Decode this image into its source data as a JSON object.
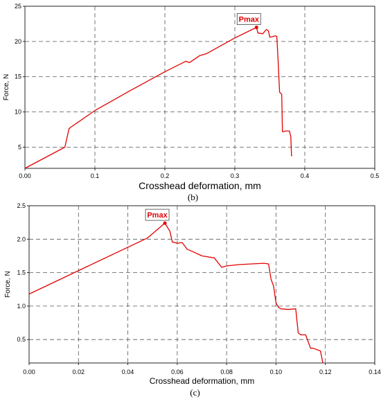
{
  "chart_data": [
    {
      "type": "line",
      "caption": "(b)",
      "xlabel": "Crosshead deformation, mm",
      "ylabel": "Force, N",
      "xlim": [
        0,
        0.5
      ],
      "ylim": [
        2,
        25
      ],
      "xticks": [
        "0.00",
        "0.1",
        "0.2",
        "0.3",
        "0.4",
        "0.5"
      ],
      "xtick_values": [
        0,
        0.1,
        0.2,
        0.3,
        0.4,
        0.5
      ],
      "yticks": [
        "5",
        "10",
        "15",
        "20",
        "25"
      ],
      "ytick_values": [
        5,
        10,
        15,
        20,
        25
      ],
      "grid": true,
      "line_color": "#e00000",
      "annotation": {
        "text": "Pmax",
        "x": 0.331,
        "y": 22.0
      },
      "series": [
        {
          "x": [
            0.0,
            0.057,
            0.063,
            0.065,
            0.1,
            0.15,
            0.2,
            0.23,
            0.235,
            0.25,
            0.26,
            0.3,
            0.331,
            0.333,
            0.34,
            0.345,
            0.348,
            0.35,
            0.358,
            0.36,
            0.362,
            0.364,
            0.367,
            0.368,
            0.37,
            0.372,
            0.378,
            0.38,
            0.381,
            0.382
          ],
          "y": [
            2.0,
            5.0,
            7.6,
            7.8,
            10.2,
            13.0,
            15.7,
            17.2,
            17.0,
            18.0,
            18.3,
            20.5,
            22.0,
            21.2,
            21.1,
            21.7,
            21.5,
            20.6,
            20.8,
            20.7,
            17.0,
            12.8,
            12.5,
            7.2,
            7.2,
            7.3,
            7.3,
            6.5,
            3.8,
            3.8
          ]
        }
      ]
    },
    {
      "type": "line",
      "caption": "(c)",
      "xlabel": "Crosshead deformation, mm",
      "ylabel": "Force, N",
      "xlim": [
        0,
        0.14
      ],
      "ylim": [
        0.15,
        2.5
      ],
      "xticks": [
        "0.00",
        "0.02",
        "0.04",
        "0.06",
        "0.08",
        "0.10",
        "0.12",
        "0.14"
      ],
      "xtick_values": [
        0,
        0.02,
        0.04,
        0.06,
        0.08,
        0.1,
        0.12,
        0.14
      ],
      "yticks": [
        "0.5",
        "1.0",
        "1.5",
        "2.0",
        "2.5"
      ],
      "ytick_values": [
        0.5,
        1.0,
        1.5,
        2.0,
        2.5
      ],
      "grid": true,
      "line_color": "#e00000",
      "annotation": {
        "text": "Pmax",
        "x": 0.055,
        "y": 2.24
      },
      "series": [
        {
          "x": [
            0.0,
            0.048,
            0.055,
            0.057,
            0.058,
            0.06,
            0.062,
            0.064,
            0.066,
            0.07,
            0.075,
            0.078,
            0.08,
            0.085,
            0.09,
            0.095,
            0.097,
            0.098,
            0.099,
            0.1,
            0.101,
            0.102,
            0.105,
            0.108,
            0.109,
            0.11,
            0.112,
            0.114,
            0.115,
            0.118,
            0.119
          ],
          "y": [
            1.18,
            2.02,
            2.24,
            2.12,
            1.96,
            1.94,
            1.95,
            1.85,
            1.82,
            1.75,
            1.72,
            1.58,
            1.6,
            1.62,
            1.63,
            1.64,
            1.63,
            1.4,
            1.3,
            1.05,
            0.98,
            0.96,
            0.95,
            0.96,
            0.6,
            0.57,
            0.57,
            0.37,
            0.37,
            0.33,
            0.15
          ]
        }
      ]
    }
  ]
}
